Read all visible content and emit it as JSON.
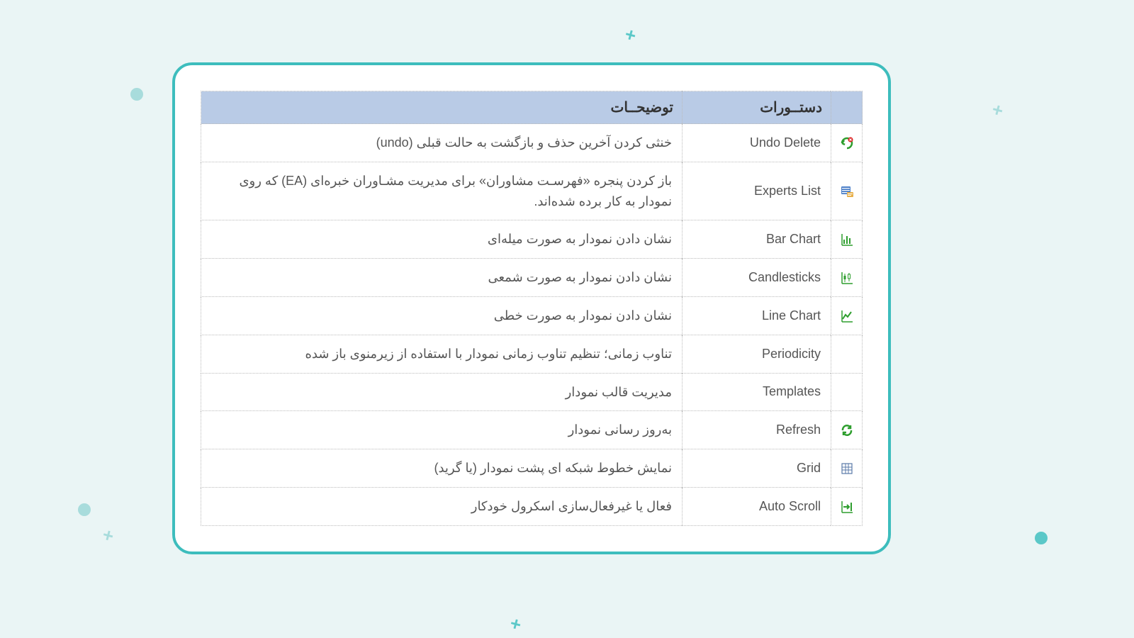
{
  "colors": {
    "page_bg": "#eaf5f5",
    "card_bg": "#ffffff",
    "card_border": "#3dbdbd",
    "header_bg": "#b9cbe6",
    "border": "#bbbbbb",
    "text": "#555555",
    "accent_teal": "#5bc8c8",
    "accent_light": "#a8dcdc",
    "icon_green": "#2e9e2e",
    "icon_red": "#d22"
  },
  "table": {
    "headers": {
      "icon": "",
      "command": "دستــورات",
      "description": "توضیحــات"
    },
    "rows": [
      {
        "icon": "undo-delete-icon",
        "command": "Undo Delete",
        "description": "خنثی کردن آخرین حذف و بازگشت به حالت قبلی (undo)"
      },
      {
        "icon": "experts-list-icon",
        "command": "Experts List",
        "description": "باز کردن پنجره «فهرسـت مشاوران» برای مدیریت مشـاوران خبره‌ای (EA) که روی نمودار به کار برده شده‌اند."
      },
      {
        "icon": "bar-chart-icon",
        "command": "Bar Chart",
        "description": "نشان دادن نمودار به صورت میله‌ای"
      },
      {
        "icon": "candlesticks-icon",
        "command": "Candlesticks",
        "description": "نشان دادن نمودار به صورت شمعی"
      },
      {
        "icon": "line-chart-icon",
        "command": "Line Chart",
        "description": "نشان دادن نمودار به صورت خطی"
      },
      {
        "icon": "",
        "command": "Periodicity",
        "description": "تناوب زمانی؛ تنظیم تناوب زمانی نمودار با استفاده از زیرمنوی باز شده"
      },
      {
        "icon": "",
        "command": "Templates",
        "description": "مدیریت قالب نمودار"
      },
      {
        "icon": "refresh-icon",
        "command": "Refresh",
        "description": "به‌روز رسانی نمودار"
      },
      {
        "icon": "grid-icon",
        "command": "Grid",
        "description": "نمایش خطوط شبکه ای پشت نمودار (یا گرید)"
      },
      {
        "icon": "auto-scroll-icon",
        "command": "Auto Scroll",
        "description": "فعال یا غیرفعال‌سازی اسکرول خودکار"
      }
    ]
  }
}
